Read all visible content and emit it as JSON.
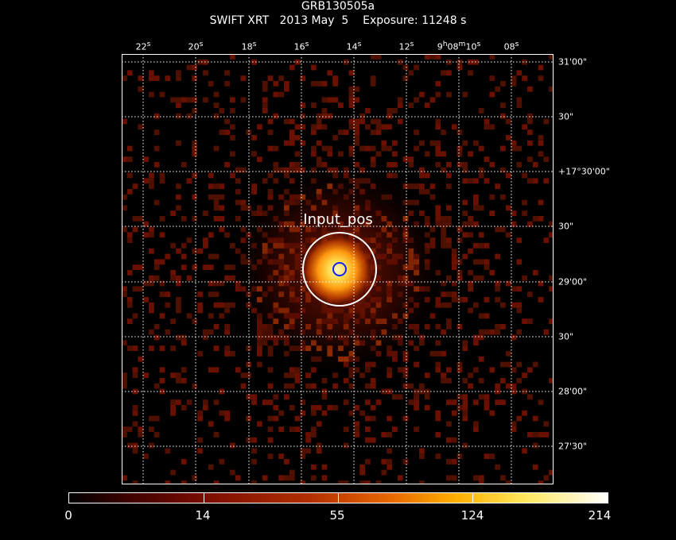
{
  "header": {
    "title": "GRB130505a",
    "subtitle": "SWIFT XRT   2013 May  5    Exposure: 11248 s"
  },
  "ra_axis": {
    "labels": [
      "22s",
      "20s",
      "18s",
      "16s",
      "14s",
      "12s",
      "9h08m10s",
      "08s"
    ]
  },
  "dec_axis": {
    "labels": [
      "31'00\"",
      "30\"",
      "+17°30'00\"",
      "30\"",
      "29'00\"",
      "30\"",
      "28'00\"",
      "27'30\""
    ]
  },
  "image": {
    "marker_label": "Input_pos",
    "source_circle_color": "#ffffff",
    "position_circle_color": "#1020ff"
  },
  "colorbar": {
    "labels": [
      "0",
      "14",
      "55",
      "124",
      "214"
    ]
  }
}
